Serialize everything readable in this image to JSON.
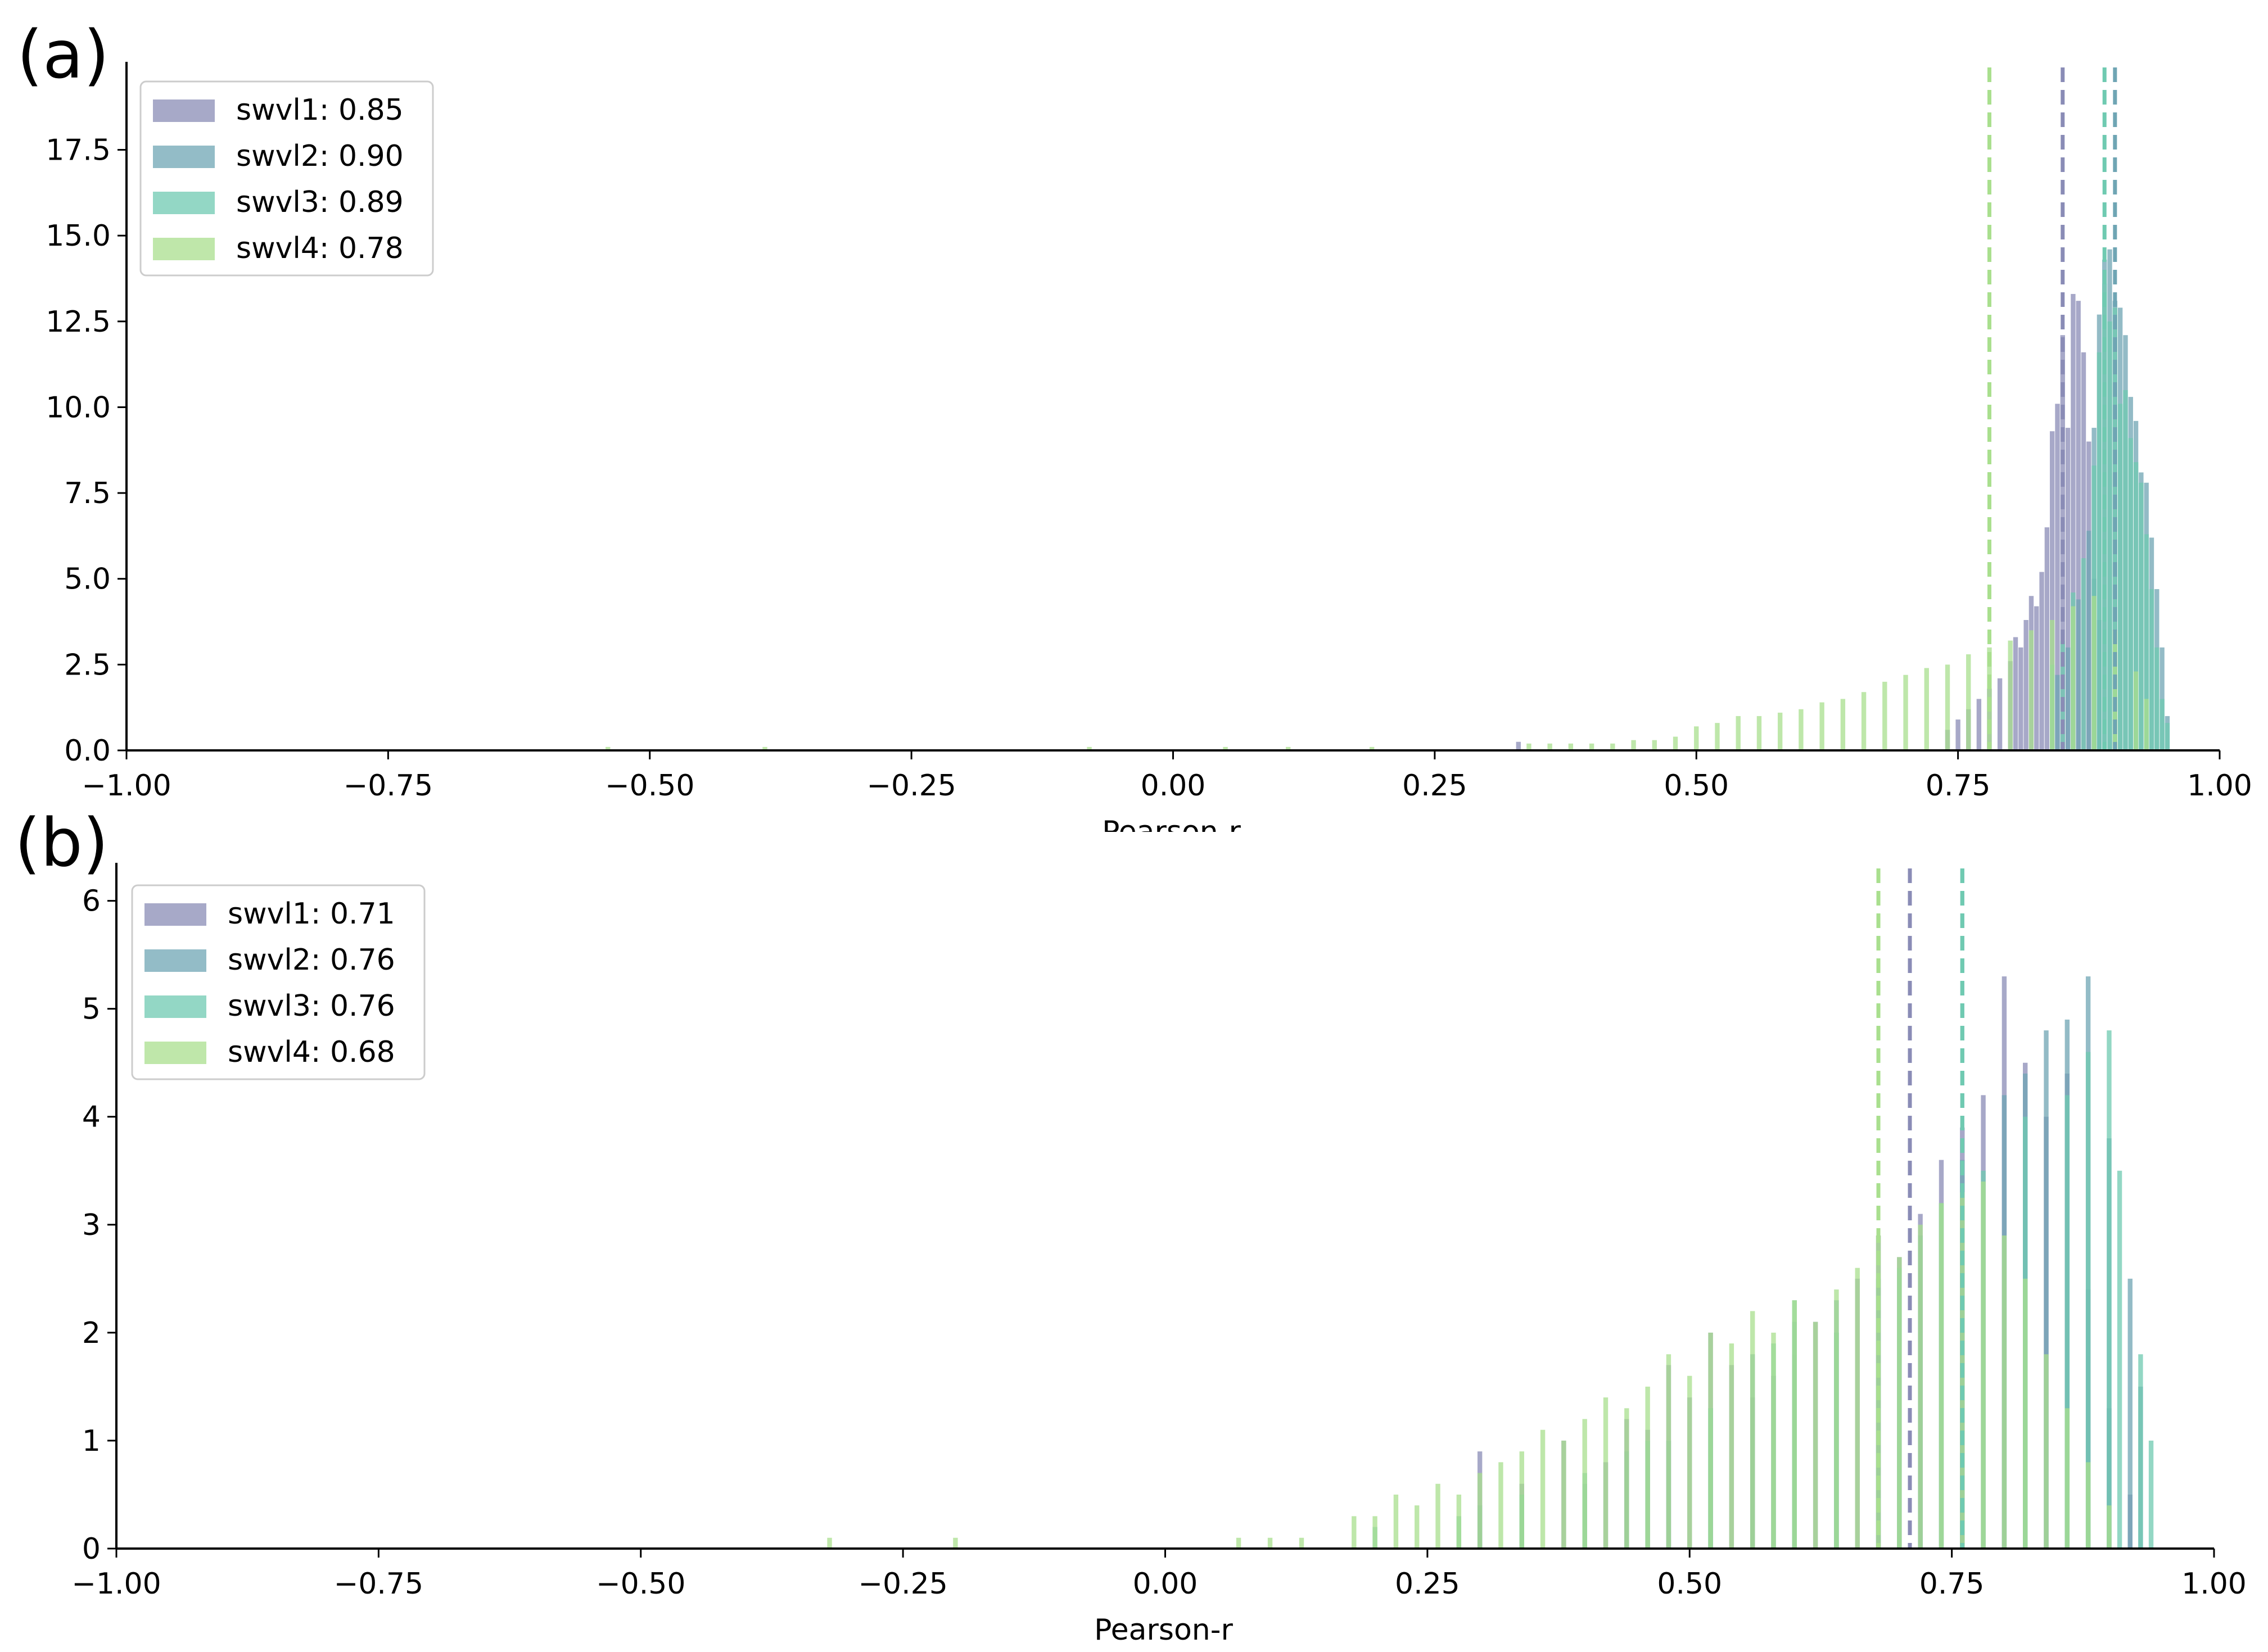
{
  "figure": {
    "panel_labels": [
      "(a)",
      "(b)"
    ]
  },
  "chart_data": [
    {
      "type": "bar",
      "panel": "(a)",
      "xlabel": "Pearson-r",
      "ylabel": "",
      "xlim": [
        -1.0,
        1.0
      ],
      "ylim": [
        0,
        19.9
      ],
      "xticks": [
        "−1.00",
        "−0.75",
        "−0.50",
        "−0.25",
        "0.00",
        "0.25",
        "0.50",
        "0.75",
        "1.00"
      ],
      "yticks": [
        "0.0",
        "2.5",
        "5.0",
        "7.5",
        "10.0",
        "12.5",
        "15.0",
        "17.5"
      ],
      "ytick_values": [
        0,
        2.5,
        5,
        7.5,
        10,
        12.5,
        15,
        17.5
      ],
      "legend_position": "upper-left",
      "grid": false,
      "bin_width": 0.005,
      "series": [
        {
          "name": "swvl1: 0.85",
          "color": "#8a8cb6",
          "mean": 0.85,
          "bins": [
            [
              0.33,
              0.25
            ],
            [
              0.74,
              0.6
            ],
            [
              0.75,
              0.9
            ],
            [
              0.76,
              1.2
            ],
            [
              0.77,
              1.5
            ],
            [
              0.78,
              1.8
            ],
            [
              0.79,
              2.1
            ],
            [
              0.8,
              2.6
            ],
            [
              0.805,
              3.3
            ],
            [
              0.81,
              3.0
            ],
            [
              0.815,
              3.8
            ],
            [
              0.82,
              4.5
            ],
            [
              0.825,
              4.2
            ],
            [
              0.83,
              5.2
            ],
            [
              0.835,
              6.5
            ],
            [
              0.84,
              9.3
            ],
            [
              0.845,
              10.1
            ],
            [
              0.85,
              12.1
            ],
            [
              0.855,
              9.4
            ],
            [
              0.86,
              13.3
            ],
            [
              0.865,
              13.1
            ],
            [
              0.87,
              11.6
            ],
            [
              0.875,
              9.0
            ],
            [
              0.88,
              5.0
            ],
            [
              0.885,
              3.8
            ]
          ]
        },
        {
          "name": "swvl2: 0.90",
          "color": "#6fa5b4",
          "mean": 0.9,
          "bins": [
            [
              0.845,
              2.2
            ],
            [
              0.855,
              3.0
            ],
            [
              0.865,
              4.4
            ],
            [
              0.875,
              6.4
            ],
            [
              0.88,
              9.4
            ],
            [
              0.885,
              12.7
            ],
            [
              0.89,
              14.3
            ],
            [
              0.895,
              14.6
            ],
            [
              0.9,
              13.1
            ],
            [
              0.905,
              12.9
            ],
            [
              0.91,
              12.1
            ],
            [
              0.915,
              10.3
            ],
            [
              0.92,
              9.6
            ],
            [
              0.925,
              8.1
            ],
            [
              0.93,
              7.8
            ],
            [
              0.935,
              6.2
            ],
            [
              0.94,
              4.7
            ],
            [
              0.945,
              3.0
            ],
            [
              0.95,
              1.0
            ]
          ]
        },
        {
          "name": "swvl3: 0.89",
          "color": "#6fcab1",
          "mean": 0.89,
          "bins": [
            [
              0.84,
              2.5
            ],
            [
              0.85,
              3.2
            ],
            [
              0.86,
              4.6
            ],
            [
              0.87,
              5.6
            ],
            [
              0.88,
              8.3
            ],
            [
              0.885,
              11.6
            ],
            [
              0.89,
              13.6
            ],
            [
              0.895,
              12.5
            ],
            [
              0.9,
              12.9
            ],
            [
              0.905,
              10.1
            ],
            [
              0.91,
              10.5
            ],
            [
              0.915,
              9.1
            ],
            [
              0.92,
              8.4
            ],
            [
              0.925,
              7.8
            ],
            [
              0.93,
              6.3
            ],
            [
              0.935,
              4.7
            ],
            [
              0.94,
              3.0
            ],
            [
              0.945,
              1.5
            ],
            [
              0.95,
              0.8
            ]
          ]
        },
        {
          "name": "swvl4: 0.78",
          "color": "#a9df8e",
          "mean": 0.78,
          "bins": [
            [
              -0.54,
              0.1
            ],
            [
              -0.39,
              0.1
            ],
            [
              -0.08,
              0.1
            ],
            [
              0.05,
              0.1
            ],
            [
              0.11,
              0.1
            ],
            [
              0.19,
              0.1
            ],
            [
              0.34,
              0.2
            ],
            [
              0.36,
              0.2
            ],
            [
              0.38,
              0.2
            ],
            [
              0.4,
              0.2
            ],
            [
              0.42,
              0.2
            ],
            [
              0.44,
              0.3
            ],
            [
              0.46,
              0.3
            ],
            [
              0.48,
              0.4
            ],
            [
              0.5,
              0.7
            ],
            [
              0.52,
              0.8
            ],
            [
              0.54,
              1.0
            ],
            [
              0.56,
              1.0
            ],
            [
              0.58,
              1.1
            ],
            [
              0.6,
              1.2
            ],
            [
              0.62,
              1.4
            ],
            [
              0.64,
              1.5
            ],
            [
              0.66,
              1.7
            ],
            [
              0.68,
              2.0
            ],
            [
              0.7,
              2.2
            ],
            [
              0.72,
              2.4
            ],
            [
              0.74,
              2.5
            ],
            [
              0.76,
              2.8
            ],
            [
              0.78,
              3.0
            ],
            [
              0.8,
              3.2
            ],
            [
              0.82,
              3.5
            ],
            [
              0.84,
              3.8
            ],
            [
              0.86,
              4.2
            ],
            [
              0.88,
              4.5
            ],
            [
              0.9,
              3.5
            ],
            [
              0.92,
              2.3
            ],
            [
              0.93,
              1.5
            ]
          ]
        }
      ]
    },
    {
      "type": "bar",
      "panel": "(b)",
      "xlabel": "Pearson-r",
      "ylabel": "",
      "xlim": [
        -1.0,
        1.0
      ],
      "ylim": [
        0,
        6.3
      ],
      "xticks": [
        "−1.00",
        "−0.75",
        "−0.50",
        "−0.25",
        "0.00",
        "0.25",
        "0.50",
        "0.75",
        "1.00"
      ],
      "yticks": [
        "0",
        "1",
        "2",
        "3",
        "4",
        "5",
        "6"
      ],
      "ytick_values": [
        0,
        1,
        2,
        3,
        4,
        5,
        6
      ],
      "legend_position": "upper-left",
      "grid": false,
      "bin_width": 0.005,
      "series": [
        {
          "name": "swvl1: 0.71",
          "color": "#8a8cb6",
          "mean": 0.71,
          "bins": [
            [
              0.3,
              0.9
            ],
            [
              0.34,
              0.6
            ],
            [
              0.38,
              1.0
            ],
            [
              0.42,
              0.8
            ],
            [
              0.44,
              1.2
            ],
            [
              0.46,
              1.1
            ],
            [
              0.48,
              1.7
            ],
            [
              0.5,
              1.4
            ],
            [
              0.52,
              2.0
            ],
            [
              0.54,
              1.7
            ],
            [
              0.56,
              1.4
            ],
            [
              0.58,
              1.6
            ],
            [
              0.6,
              1.8
            ],
            [
              0.62,
              2.1
            ],
            [
              0.64,
              2.0
            ],
            [
              0.66,
              2.5
            ],
            [
              0.68,
              2.9
            ],
            [
              0.7,
              2.7
            ],
            [
              0.72,
              3.1
            ],
            [
              0.74,
              3.6
            ],
            [
              0.76,
              3.9
            ],
            [
              0.78,
              4.2
            ],
            [
              0.8,
              5.3
            ],
            [
              0.82,
              4.5
            ],
            [
              0.84,
              4.0
            ],
            [
              0.86,
              4.4
            ],
            [
              0.88,
              2.4
            ],
            [
              0.9,
              1.3
            ],
            [
              0.92,
              0.5
            ]
          ]
        },
        {
          "name": "swvl2: 0.76",
          "color": "#6fa5b4",
          "mean": 0.76,
          "bins": [
            [
              0.3,
              0.4
            ],
            [
              0.34,
              0.5
            ],
            [
              0.4,
              0.6
            ],
            [
              0.44,
              0.9
            ],
            [
              0.48,
              1.0
            ],
            [
              0.52,
              1.3
            ],
            [
              0.56,
              1.8
            ],
            [
              0.6,
              2.1
            ],
            [
              0.64,
              2.3
            ],
            [
              0.68,
              2.5
            ],
            [
              0.72,
              2.9
            ],
            [
              0.76,
              3.6
            ],
            [
              0.8,
              4.2
            ],
            [
              0.82,
              4.4
            ],
            [
              0.84,
              4.8
            ],
            [
              0.86,
              4.9
            ],
            [
              0.88,
              5.3
            ],
            [
              0.9,
              3.8
            ],
            [
              0.92,
              2.5
            ],
            [
              0.93,
              1.5
            ]
          ]
        },
        {
          "name": "swvl3: 0.76",
          "color": "#6fcab1",
          "mean": 0.76,
          "bins": [
            [
              0.2,
              0.2
            ],
            [
              0.28,
              0.3
            ],
            [
              0.34,
              0.5
            ],
            [
              0.4,
              0.7
            ],
            [
              0.46,
              1.0
            ],
            [
              0.52,
              1.3
            ],
            [
              0.58,
              1.9
            ],
            [
              0.6,
              2.3
            ],
            [
              0.64,
              2.0
            ],
            [
              0.7,
              2.6
            ],
            [
              0.74,
              3.2
            ],
            [
              0.78,
              3.5
            ],
            [
              0.82,
              4.0
            ],
            [
              0.86,
              4.2
            ],
            [
              0.88,
              4.6
            ],
            [
              0.9,
              4.8
            ],
            [
              0.91,
              3.5
            ],
            [
              0.93,
              1.8
            ],
            [
              0.94,
              1.0
            ]
          ]
        },
        {
          "name": "swvl4: 0.68",
          "color": "#a9df8e",
          "mean": 0.68,
          "bins": [
            [
              -0.32,
              0.1
            ],
            [
              -0.2,
              0.1
            ],
            [
              0.07,
              0.1
            ],
            [
              0.1,
              0.1
            ],
            [
              0.13,
              0.1
            ],
            [
              0.18,
              0.3
            ],
            [
              0.2,
              0.3
            ],
            [
              0.22,
              0.5
            ],
            [
              0.24,
              0.4
            ],
            [
              0.26,
              0.6
            ],
            [
              0.28,
              0.5
            ],
            [
              0.3,
              0.7
            ],
            [
              0.32,
              0.8
            ],
            [
              0.34,
              0.9
            ],
            [
              0.36,
              1.1
            ],
            [
              0.38,
              1.0
            ],
            [
              0.4,
              1.2
            ],
            [
              0.42,
              1.4
            ],
            [
              0.44,
              1.3
            ],
            [
              0.46,
              1.5
            ],
            [
              0.48,
              1.8
            ],
            [
              0.5,
              1.6
            ],
            [
              0.52,
              2.0
            ],
            [
              0.54,
              1.9
            ],
            [
              0.56,
              2.2
            ],
            [
              0.58,
              2.0
            ],
            [
              0.6,
              2.3
            ],
            [
              0.62,
              2.1
            ],
            [
              0.64,
              2.4
            ],
            [
              0.66,
              2.6
            ],
            [
              0.68,
              2.9
            ],
            [
              0.7,
              2.7
            ],
            [
              0.72,
              3.0
            ],
            [
              0.74,
              3.2
            ],
            [
              0.76,
              3.3
            ],
            [
              0.78,
              3.4
            ],
            [
              0.8,
              2.9
            ],
            [
              0.82,
              2.5
            ],
            [
              0.84,
              1.8
            ],
            [
              0.86,
              1.3
            ],
            [
              0.88,
              0.8
            ],
            [
              0.9,
              0.4
            ]
          ]
        }
      ]
    }
  ]
}
